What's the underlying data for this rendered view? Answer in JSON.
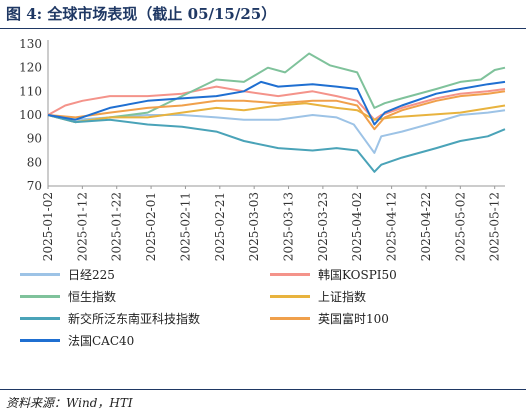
{
  "figure": {
    "title": "图 4:  全球市场表现（截止 05/15/25）",
    "source": "资料来源：Wind，HTI"
  },
  "chart_data": {
    "type": "line",
    "ylim": [
      70,
      130
    ],
    "yticks": [
      70,
      80,
      90,
      100,
      110,
      120,
      130
    ],
    "xlim": [
      "2025-01-02",
      "2025-05-15"
    ],
    "xticks": [
      "2025-01-02",
      "2025-01-12",
      "2025-01-22",
      "2025-02-01",
      "2025-02-11",
      "2025-02-21",
      "2025-03-03",
      "2025-03-13",
      "2025-03-23",
      "2025-04-02",
      "2025-04-12",
      "2025-04-22",
      "2025-05-02",
      "2025-05-12"
    ],
    "grid": false,
    "legend_position": "bottom",
    "series": [
      {
        "name": "日经225",
        "color": "#9dc3e6",
        "points": [
          [
            "2025-01-02",
            100
          ],
          [
            "2025-01-10",
            98
          ],
          [
            "2025-01-20",
            99
          ],
          [
            "2025-01-31",
            100
          ],
          [
            "2025-02-10",
            100
          ],
          [
            "2025-02-20",
            99
          ],
          [
            "2025-02-28",
            98
          ],
          [
            "2025-03-10",
            98
          ],
          [
            "2025-03-20",
            100
          ],
          [
            "2025-03-27",
            99
          ],
          [
            "2025-04-01",
            96
          ],
          [
            "2025-04-04",
            90
          ],
          [
            "2025-04-07",
            84
          ],
          [
            "2025-04-09",
            91
          ],
          [
            "2025-04-15",
            93
          ],
          [
            "2025-04-25",
            97
          ],
          [
            "2025-05-02",
            100
          ],
          [
            "2025-05-10",
            101
          ],
          [
            "2025-05-15",
            102
          ]
        ]
      },
      {
        "name": "韩国KOSPI50",
        "color": "#f4938a",
        "points": [
          [
            "2025-01-02",
            100
          ],
          [
            "2025-01-07",
            104
          ],
          [
            "2025-01-12",
            106
          ],
          [
            "2025-01-20",
            108
          ],
          [
            "2025-01-31",
            108
          ],
          [
            "2025-02-10",
            109
          ],
          [
            "2025-02-20",
            112
          ],
          [
            "2025-02-28",
            110
          ],
          [
            "2025-03-10",
            108
          ],
          [
            "2025-03-20",
            110
          ],
          [
            "2025-03-27",
            108
          ],
          [
            "2025-04-02",
            106
          ],
          [
            "2025-04-07",
            98
          ],
          [
            "2025-04-09",
            100
          ],
          [
            "2025-04-15",
            103
          ],
          [
            "2025-04-25",
            107
          ],
          [
            "2025-05-02",
            109
          ],
          [
            "2025-05-10",
            110
          ],
          [
            "2025-05-15",
            111
          ]
        ]
      },
      {
        "name": "恒生指数",
        "color": "#7fc29b",
        "points": [
          [
            "2025-01-02",
            100
          ],
          [
            "2025-01-10",
            97
          ],
          [
            "2025-01-20",
            99
          ],
          [
            "2025-01-31",
            101
          ],
          [
            "2025-02-10",
            108
          ],
          [
            "2025-02-20",
            115
          ],
          [
            "2025-02-28",
            114
          ],
          [
            "2025-03-07",
            120
          ],
          [
            "2025-03-12",
            118
          ],
          [
            "2025-03-19",
            126
          ],
          [
            "2025-03-25",
            121
          ],
          [
            "2025-04-02",
            118
          ],
          [
            "2025-04-07",
            103
          ],
          [
            "2025-04-10",
            105
          ],
          [
            "2025-04-15",
            107
          ],
          [
            "2025-04-25",
            111
          ],
          [
            "2025-05-02",
            114
          ],
          [
            "2025-05-08",
            115
          ],
          [
            "2025-05-12",
            119
          ],
          [
            "2025-05-15",
            120
          ]
        ]
      },
      {
        "name": "上证指数",
        "color": "#e8b33e",
        "points": [
          [
            "2025-01-02",
            100
          ],
          [
            "2025-01-10",
            97
          ],
          [
            "2025-01-20",
            99
          ],
          [
            "2025-01-31",
            99
          ],
          [
            "2025-02-10",
            101
          ],
          [
            "2025-02-20",
            103
          ],
          [
            "2025-02-28",
            102
          ],
          [
            "2025-03-10",
            104
          ],
          [
            "2025-03-18",
            105
          ],
          [
            "2025-03-27",
            103
          ],
          [
            "2025-04-02",
            102
          ],
          [
            "2025-04-07",
            98
          ],
          [
            "2025-04-12",
            99
          ],
          [
            "2025-04-22",
            100
          ],
          [
            "2025-05-02",
            101
          ],
          [
            "2025-05-15",
            104
          ]
        ]
      },
      {
        "name": "新交所泛东南亚科技指数",
        "color": "#4aa3b8",
        "points": [
          [
            "2025-01-02",
            100
          ],
          [
            "2025-01-10",
            97
          ],
          [
            "2025-01-20",
            98
          ],
          [
            "2025-01-31",
            96
          ],
          [
            "2025-02-10",
            95
          ],
          [
            "2025-02-20",
            93
          ],
          [
            "2025-02-28",
            89
          ],
          [
            "2025-03-10",
            86
          ],
          [
            "2025-03-20",
            85
          ],
          [
            "2025-03-27",
            86
          ],
          [
            "2025-04-02",
            85
          ],
          [
            "2025-04-07",
            76
          ],
          [
            "2025-04-09",
            79
          ],
          [
            "2025-04-15",
            82
          ],
          [
            "2025-04-25",
            86
          ],
          [
            "2025-05-02",
            89
          ],
          [
            "2025-05-10",
            91
          ],
          [
            "2025-05-15",
            94
          ]
        ]
      },
      {
        "name": "英国富时100",
        "color": "#f0a04b",
        "points": [
          [
            "2025-01-02",
            100
          ],
          [
            "2025-01-10",
            99
          ],
          [
            "2025-01-20",
            101
          ],
          [
            "2025-01-31",
            103
          ],
          [
            "2025-02-10",
            104
          ],
          [
            "2025-02-20",
            106
          ],
          [
            "2025-02-28",
            106
          ],
          [
            "2025-03-10",
            105
          ],
          [
            "2025-03-20",
            106
          ],
          [
            "2025-03-27",
            106
          ],
          [
            "2025-04-02",
            104
          ],
          [
            "2025-04-07",
            94
          ],
          [
            "2025-04-10",
            99
          ],
          [
            "2025-04-15",
            102
          ],
          [
            "2025-04-25",
            106
          ],
          [
            "2025-05-02",
            108
          ],
          [
            "2025-05-10",
            109
          ],
          [
            "2025-05-15",
            110
          ]
        ]
      },
      {
        "name": "法国CAC40",
        "color": "#1f6fd1",
        "points": [
          [
            "2025-01-02",
            100
          ],
          [
            "2025-01-10",
            98
          ],
          [
            "2025-01-20",
            103
          ],
          [
            "2025-01-31",
            106
          ],
          [
            "2025-02-10",
            107
          ],
          [
            "2025-02-20",
            108
          ],
          [
            "2025-02-28",
            110
          ],
          [
            "2025-03-05",
            114
          ],
          [
            "2025-03-10",
            112
          ],
          [
            "2025-03-20",
            113
          ],
          [
            "2025-03-27",
            112
          ],
          [
            "2025-04-02",
            111
          ],
          [
            "2025-04-07",
            96
          ],
          [
            "2025-04-10",
            101
          ],
          [
            "2025-04-15",
            104
          ],
          [
            "2025-04-25",
            109
          ],
          [
            "2025-05-02",
            111
          ],
          [
            "2025-05-10",
            113
          ],
          [
            "2025-05-15",
            114
          ]
        ]
      }
    ]
  }
}
